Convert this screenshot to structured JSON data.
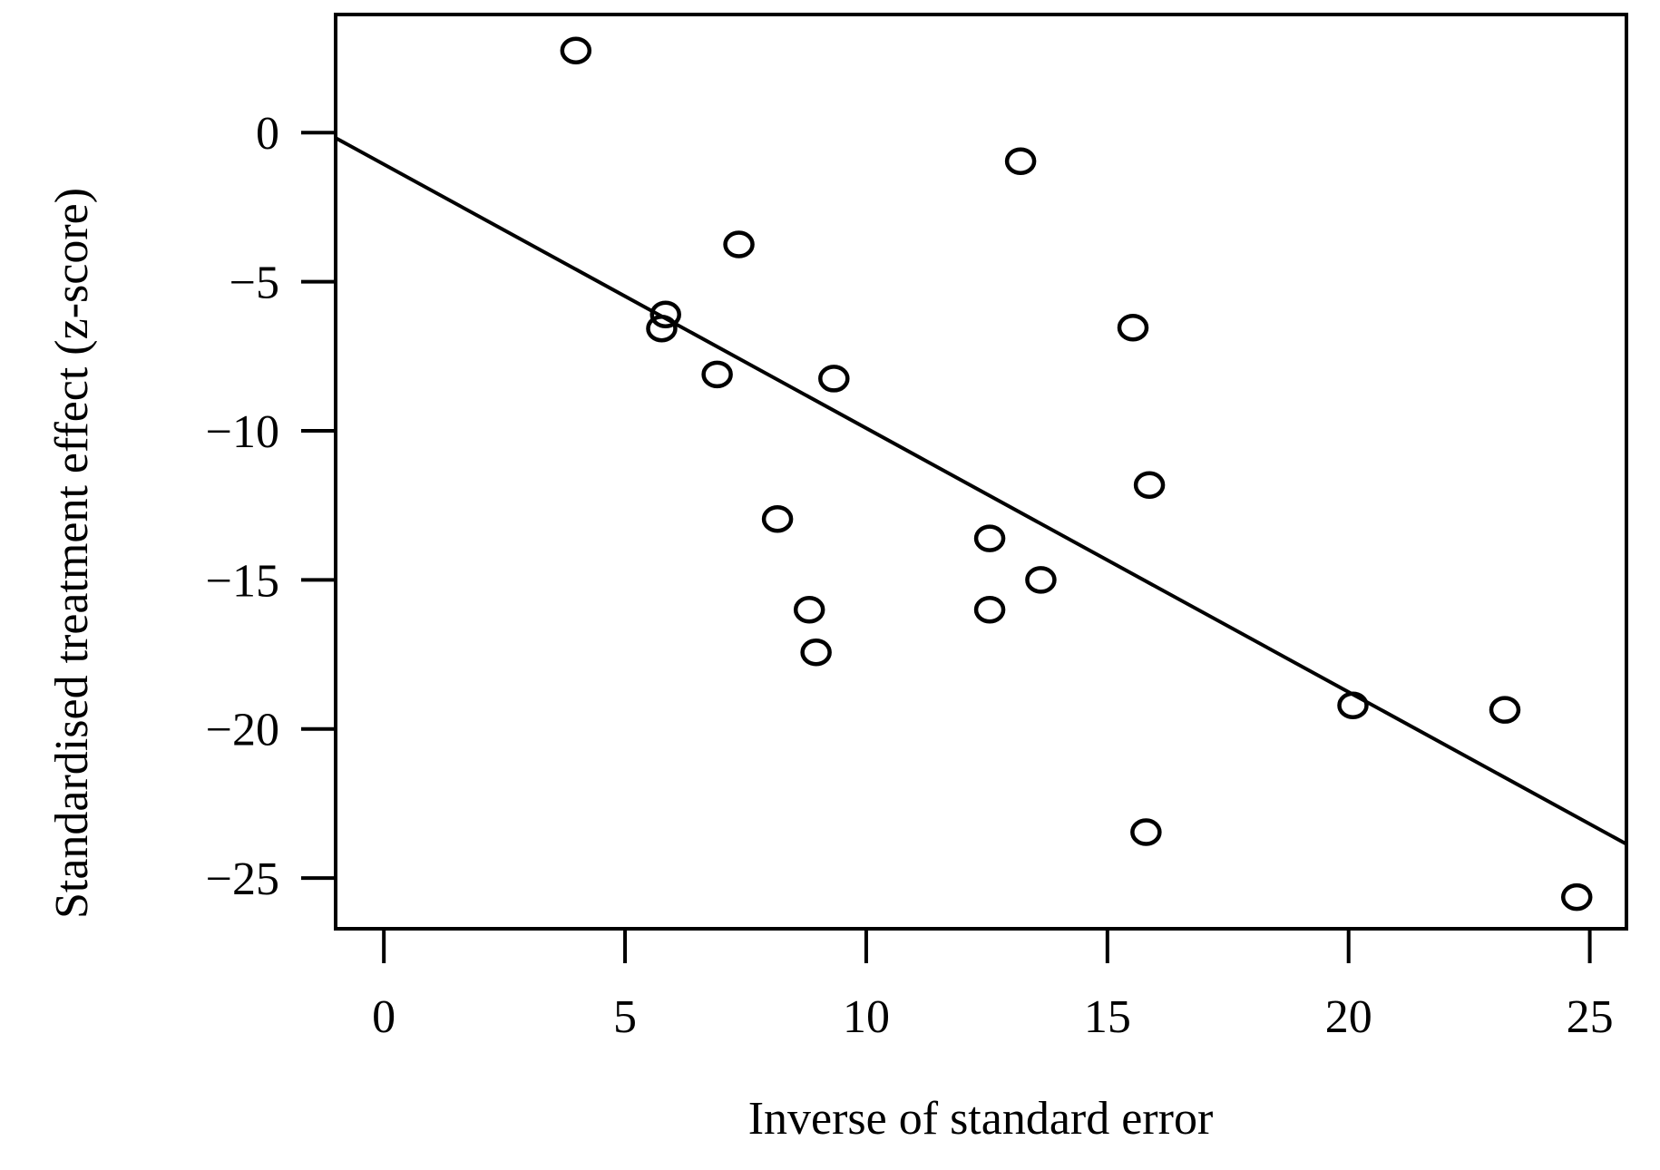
{
  "chart_data": {
    "type": "scatter",
    "xlabel": "Inverse of standard error",
    "ylabel": "Standardised treatment effect (z-score)",
    "x": [
      3.98,
      13.2,
      7.36,
      5.84,
      5.76,
      15.53,
      6.91,
      9.33,
      15.87,
      8.16,
      12.56,
      13.62,
      8.82,
      12.56,
      8.96,
      20.09,
      23.24,
      15.8,
      24.73
    ],
    "values": [
      2.75,
      -0.96,
      -3.75,
      -6.1,
      -6.57,
      -6.54,
      -8.11,
      -8.25,
      -11.82,
      -12.96,
      -13.61,
      -15.0,
      -16.0,
      -16.0,
      -17.43,
      -19.21,
      -19.36,
      -23.46,
      -25.64
    ],
    "color": "#000000",
    "regression_line": {
      "x": [
        -1,
        25.76
      ],
      "y": [
        -0.18,
        -23.86
      ]
    },
    "xlim": [
      -1,
      25.76
    ],
    "ylim": [
      -26.7,
      3.96
    ],
    "xticks": [
      0,
      5,
      10,
      15,
      20,
      25
    ],
    "yticks": [
      0,
      {
        "value": -5,
        "label": "−5"
      },
      {
        "value": -10,
        "label": "−10"
      },
      {
        "value": -15,
        "label": "−15"
      },
      {
        "value": -20,
        "label": "−20"
      },
      {
        "value": -25,
        "label": "−25"
      }
    ]
  }
}
